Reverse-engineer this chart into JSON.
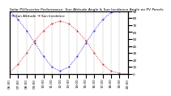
{
  "title": "Solar PV/Inverter Performance  Sun Altitude Angle & Sun Incidence Angle on PV Panels",
  "blue_label": "Sun Altitude",
  "red_label": "Sun Incidence",
  "x_start": 6,
  "x_end": 20,
  "x_ticks": [
    6,
    7,
    8,
    9,
    10,
    11,
    12,
    13,
    14,
    15,
    16,
    17,
    18,
    19,
    20
  ],
  "x_tick_labels": [
    "06:00",
    "07:00",
    "08:00",
    "09:00",
    "10:00",
    "11:00",
    "12:00",
    "13:00",
    "14:00",
    "15:00",
    "16:00",
    "17:00",
    "18:00",
    "19:00",
    "20:00"
  ],
  "y_min": 0,
  "y_max": 90,
  "y_ticks": [
    0,
    10,
    20,
    30,
    40,
    50,
    60,
    70,
    80,
    90
  ],
  "blue_x": [
    6,
    7,
    8,
    9,
    10,
    11,
    12,
    13,
    14,
    15,
    16,
    17,
    18,
    19,
    20
  ],
  "blue_y": [
    90,
    78,
    62,
    44,
    25,
    10,
    4,
    10,
    25,
    44,
    62,
    78,
    88,
    90,
    90
  ],
  "red_x": [
    6,
    7,
    8,
    9,
    10,
    11,
    12,
    13,
    14,
    15,
    16,
    17,
    18,
    19,
    20
  ],
  "red_y": [
    2,
    14,
    30,
    48,
    62,
    72,
    76,
    72,
    62,
    48,
    30,
    14,
    4,
    1,
    0
  ],
  "blue_color": "#0000CC",
  "red_color": "#CC0000",
  "bg_color": "#FFFFFF",
  "grid_color": "#BBBBBB",
  "title_fontsize": 3.2,
  "tick_fontsize": 3.0,
  "label_fontsize": 3.0,
  "legend_fontsize": 3.0
}
